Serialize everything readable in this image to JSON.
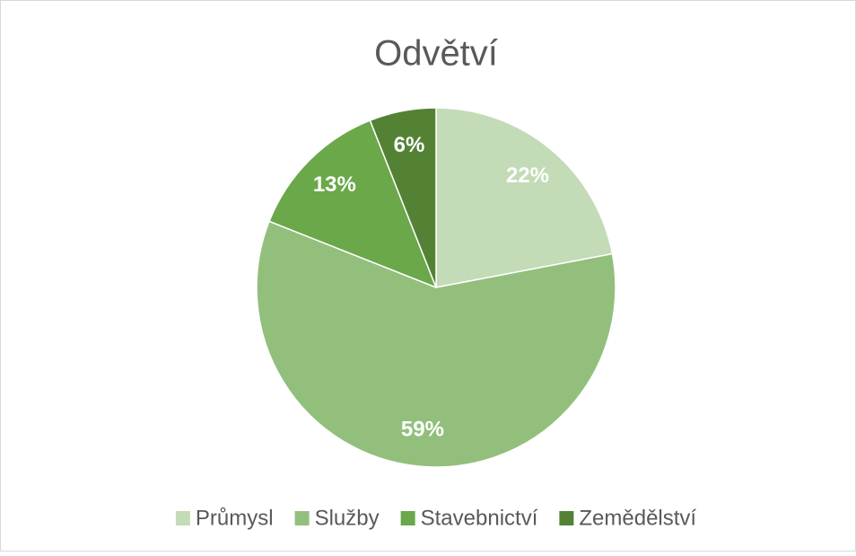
{
  "chart_data": {
    "type": "pie",
    "title": "Odvětví",
    "categories": [
      "Průmysl",
      "Služby",
      "Stavebnictví",
      "Zemědělství"
    ],
    "values": [
      22,
      59,
      13,
      6
    ],
    "value_labels": [
      "22%",
      "59%",
      "13%",
      "6%"
    ],
    "colors": [
      "#c3dbb7",
      "#93bf7c",
      "#6aa84a",
      "#548235"
    ],
    "legend": "bottom"
  }
}
